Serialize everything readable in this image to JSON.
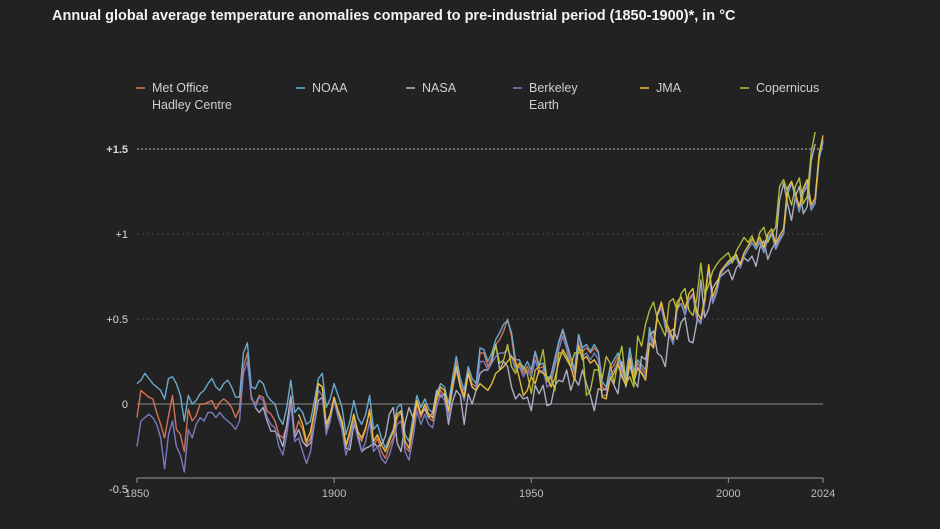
{
  "chart_data": {
    "type": "line",
    "title": "Annual global average temperature anomalies compared to pre-industrial period (1850-1900)*, in °C",
    "xlabel": "",
    "ylabel": "",
    "xlim": [
      1850,
      2024
    ],
    "ylim": [
      -0.5,
      1.6
    ],
    "x_ticks": [
      "1850",
      "1900",
      "1950",
      "2000",
      "2024"
    ],
    "y_ticks": [
      {
        "value": 1.5,
        "label": "+1.5"
      },
      {
        "value": 1,
        "label": "+1"
      },
      {
        "value": 0.5,
        "label": "+0.5"
      },
      {
        "value": 0,
        "label": "0"
      },
      {
        "value": -0.5,
        "label": "-0.5"
      }
    ],
    "reference_line": 1.5,
    "grid": true,
    "legend_position": "top",
    "series": [
      {
        "name": "Met Office Hadley Centre",
        "legend_lines": [
          "Met Office",
          "Hadley Centre"
        ],
        "color": "#d9775a",
        "x_start": 1850,
        "values": [
          -0.08,
          0.08,
          0.06,
          0.04,
          0.03,
          -0.05,
          -0.12,
          -0.2,
          -0.07,
          0.05,
          -0.15,
          -0.18,
          -0.28,
          -0.03,
          -0.1,
          -0.07,
          0.0,
          0.0,
          0.01,
          0.02,
          -0.03,
          0.01,
          0.03,
          0.01,
          -0.02,
          -0.08,
          -0.03,
          0.22,
          0.3,
          0.03,
          0.0,
          0.05,
          0.04,
          -0.04,
          -0.06,
          -0.1,
          -0.18,
          -0.2,
          -0.13,
          0.05,
          -0.18,
          -0.1,
          -0.15,
          -0.24,
          -0.2,
          -0.05,
          0.12,
          0.1,
          -0.12,
          -0.07,
          0.04,
          -0.05,
          -0.1,
          -0.25,
          -0.18,
          -0.08,
          -0.18,
          -0.22,
          -0.15,
          -0.03,
          -0.25,
          -0.2,
          -0.28,
          -0.32,
          -0.25,
          -0.2,
          -0.08,
          -0.05,
          -0.25,
          -0.28,
          -0.15,
          0.0,
          -0.08,
          -0.02,
          -0.08,
          -0.1,
          0.02,
          0.08,
          0.05,
          -0.05,
          0.12,
          0.25,
          0.12,
          0.05,
          0.2,
          0.12,
          0.1,
          0.3,
          0.3,
          0.22,
          0.27,
          0.35,
          0.38,
          0.43,
          0.5,
          0.4,
          0.22,
          0.24,
          0.18,
          0.22,
          0.18,
          0.3,
          0.21,
          0.22,
          0.13,
          0.15,
          0.25,
          0.36,
          0.43,
          0.35,
          0.26,
          0.18,
          0.4,
          0.31,
          0.33,
          0.3,
          0.33,
          0.3,
          0.1,
          0.08,
          0.2,
          0.23,
          0.28,
          0.2,
          0.15,
          0.3,
          0.17,
          0.24,
          0.21,
          0.18,
          0.42,
          0.35,
          0.53,
          0.58,
          0.47,
          0.42,
          0.36,
          0.57,
          0.59,
          0.53,
          0.62,
          0.65,
          0.51,
          0.48,
          0.6,
          0.81,
          0.6,
          0.66,
          0.77,
          0.8,
          0.83,
          0.85,
          0.87,
          0.8,
          0.87,
          0.91,
          0.95,
          0.92,
          0.96,
          0.9,
          0.98,
          1.01,
          0.92,
          0.97,
          1.01,
          1.25,
          1.3,
          1.22,
          1.14,
          1.25,
          1.3,
          1.15,
          1.19,
          1.45,
          1.55
        ]
      },
      {
        "name": "NOAA",
        "color": "#6fb1d6",
        "x_start": 1850,
        "values": [
          0.12,
          0.14,
          0.18,
          0.15,
          0.12,
          0.1,
          0.08,
          0.03,
          0.15,
          0.16,
          0.12,
          0.05,
          -0.1,
          0.05,
          0.0,
          0.02,
          0.06,
          0.08,
          0.12,
          0.15,
          0.1,
          0.08,
          0.12,
          0.14,
          0.1,
          0.04,
          0.04,
          0.3,
          0.36,
          0.1,
          0.09,
          0.14,
          0.12,
          0.05,
          0.02,
          0.0,
          -0.08,
          -0.12,
          -0.02,
          0.14,
          -0.05,
          -0.02,
          -0.05,
          -0.12,
          -0.1,
          0.02,
          0.15,
          0.18,
          -0.02,
          0.03,
          0.12,
          0.05,
          -0.02,
          -0.18,
          -0.1,
          0.02,
          -0.08,
          -0.12,
          -0.06,
          0.05,
          -0.15,
          -0.12,
          -0.2,
          -0.26,
          -0.2,
          -0.15,
          -0.02,
          0.0,
          -0.18,
          -0.22,
          -0.08,
          0.05,
          -0.02,
          0.03,
          -0.03,
          -0.05,
          0.06,
          0.12,
          0.1,
          0.0,
          0.15,
          0.28,
          0.15,
          0.08,
          0.22,
          0.15,
          0.12,
          0.33,
          0.32,
          0.25,
          0.3,
          0.38,
          0.42,
          0.47,
          0.49,
          0.42,
          0.26,
          0.26,
          0.2,
          0.25,
          0.2,
          0.31,
          0.23,
          0.24,
          0.15,
          0.17,
          0.27,
          0.37,
          0.44,
          0.36,
          0.28,
          0.2,
          0.41,
          0.33,
          0.35,
          0.31,
          0.35,
          0.31,
          0.13,
          0.1,
          0.22,
          0.26,
          0.3,
          0.22,
          0.17,
          0.33,
          0.19,
          0.26,
          0.23,
          0.2,
          0.45,
          0.36,
          0.52,
          0.57,
          0.45,
          0.41,
          0.36,
          0.56,
          0.59,
          0.53,
          0.61,
          0.64,
          0.5,
          0.48,
          0.6,
          0.8,
          0.6,
          0.66,
          0.76,
          0.8,
          0.82,
          0.84,
          0.86,
          0.8,
          0.87,
          0.91,
          0.95,
          0.91,
          0.95,
          0.89,
          0.97,
          1.0,
          0.91,
          0.96,
          1.0,
          1.23,
          1.3,
          1.21,
          1.13,
          1.24,
          1.28,
          1.14,
          1.18,
          1.44,
          1.54
        ]
      },
      {
        "name": "NASA",
        "color": "#b3b6c9",
        "x_start": 1880,
        "values": [
          -0.02,
          -0.05,
          -0.02,
          -0.1,
          -0.16,
          -0.16,
          -0.19,
          -0.25,
          -0.12,
          0.04,
          -0.2,
          -0.15,
          -0.22,
          -0.25,
          -0.23,
          -0.12,
          0.02,
          0.04,
          -0.15,
          -0.08,
          0.02,
          -0.05,
          -0.12,
          -0.26,
          -0.27,
          -0.12,
          -0.18,
          -0.28,
          -0.26,
          -0.25,
          -0.23,
          -0.25,
          -0.24,
          -0.19,
          -0.06,
          -0.02,
          -0.23,
          -0.28,
          -0.11,
          -0.02,
          -0.08,
          0.02,
          -0.06,
          -0.03,
          -0.08,
          -0.05,
          0.08,
          0.04,
          0.06,
          -0.12,
          0.01,
          0.08,
          0.05,
          -0.12,
          0.06,
          0.0,
          0.08,
          0.18,
          0.2,
          0.2,
          0.25,
          0.35,
          0.2,
          0.25,
          0.22,
          0.1,
          0.03,
          0.06,
          0.03,
          0.04,
          -0.04,
          0.11,
          0.06,
          0.11,
          -0.01,
          0.0,
          0.11,
          0.14,
          0.13,
          0.2,
          0.08,
          0.15,
          0.11,
          0.2,
          0.12,
          0.05,
          -0.04,
          0.09,
          0.08,
          0.09,
          0.16,
          0.11,
          0.06,
          0.25,
          0.1,
          0.23,
          0.14,
          0.1,
          0.28,
          0.26,
          0.4,
          0.43,
          0.3,
          0.28,
          0.22,
          0.42,
          0.44,
          0.38,
          0.48,
          0.51,
          0.37,
          0.36,
          0.48,
          0.73,
          0.51,
          0.56,
          0.68,
          0.72,
          0.75,
          0.77,
          0.79,
          0.73,
          0.8,
          0.83,
          0.86,
          0.84,
          0.87,
          0.81,
          0.92,
          0.96,
          0.85,
          0.91,
          0.95,
          1.2,
          1.3,
          1.18,
          1.08,
          1.22,
          1.28,
          1.12,
          1.16,
          1.43,
          1.53
        ]
      },
      {
        "name": "Berkeley Earth",
        "legend_lines": [
          "Berkeley",
          "Earth"
        ],
        "color": "#7d80c9",
        "x_start": 1850,
        "values": [
          -0.25,
          -0.1,
          -0.08,
          -0.06,
          -0.08,
          -0.12,
          -0.2,
          -0.38,
          -0.18,
          -0.1,
          -0.25,
          -0.3,
          -0.4,
          -0.15,
          -0.2,
          -0.12,
          -0.08,
          -0.1,
          -0.05,
          -0.05,
          -0.08,
          -0.05,
          -0.08,
          -0.1,
          -0.12,
          -0.15,
          -0.1,
          0.18,
          0.25,
          0.05,
          -0.02,
          0.04,
          0.02,
          -0.08,
          -0.12,
          -0.14,
          -0.25,
          -0.3,
          -0.18,
          0.0,
          -0.22,
          -0.2,
          -0.28,
          -0.35,
          -0.28,
          -0.12,
          0.08,
          0.05,
          -0.18,
          -0.1,
          0.02,
          -0.08,
          -0.15,
          -0.3,
          -0.22,
          -0.1,
          -0.2,
          -0.28,
          -0.22,
          -0.1,
          -0.28,
          -0.25,
          -0.32,
          -0.35,
          -0.3,
          -0.22,
          -0.12,
          -0.1,
          -0.28,
          -0.33,
          -0.2,
          -0.04,
          -0.12,
          -0.06,
          -0.12,
          -0.14,
          -0.02,
          0.06,
          0.02,
          -0.08,
          0.08,
          0.2,
          0.1,
          0.02,
          0.18,
          0.1,
          0.08,
          0.25,
          0.25,
          0.2,
          0.24,
          0.28,
          0.3,
          0.3,
          0.32,
          0.28,
          0.2,
          0.22,
          0.16,
          0.2,
          0.16,
          0.26,
          0.18,
          0.2,
          0.1,
          0.12,
          0.22,
          0.32,
          0.4,
          0.32,
          0.22,
          0.14,
          0.36,
          0.28,
          0.3,
          0.26,
          0.3,
          0.26,
          0.05,
          0.05,
          0.17,
          0.2,
          0.25,
          0.18,
          0.12,
          0.28,
          0.15,
          0.22,
          0.19,
          0.16,
          0.4,
          0.33,
          0.52,
          0.57,
          0.46,
          0.41,
          0.35,
          0.56,
          0.59,
          0.52,
          0.61,
          0.64,
          0.5,
          0.47,
          0.59,
          0.81,
          0.59,
          0.65,
          0.76,
          0.8,
          0.83,
          0.85,
          0.87,
          0.8,
          0.87,
          0.91,
          0.95,
          0.92,
          0.96,
          0.9,
          0.98,
          1.01,
          0.92,
          0.97,
          1.01,
          1.25,
          1.31,
          1.21,
          1.14,
          1.25,
          1.3,
          1.15,
          1.19,
          1.46,
          1.56
        ]
      },
      {
        "name": "JMA",
        "color": "#f0c33c",
        "x_start": 1891,
        "values": [
          -0.06,
          -0.12,
          -0.22,
          -0.16,
          -0.04,
          0.12,
          0.1,
          -0.12,
          -0.06,
          0.04,
          -0.04,
          -0.1,
          -0.24,
          -0.16,
          -0.06,
          -0.16,
          -0.2,
          -0.14,
          -0.04,
          -0.22,
          -0.18,
          -0.24,
          -0.28,
          -0.22,
          -0.16,
          -0.06,
          -0.04,
          -0.22,
          -0.26,
          -0.12,
          0.02,
          -0.06,
          0.0,
          -0.06,
          -0.08,
          0.04,
          0.1,
          0.08,
          -0.04,
          0.1,
          0.22,
          0.1,
          0.04,
          0.18,
          0.1,
          0.08,
          0.12,
          0.1,
          0.08,
          0.12,
          0.18,
          0.2,
          0.22,
          0.25,
          0.28,
          0.25,
          0.15,
          0.05,
          0.08,
          0.16,
          0.12,
          0.2,
          0.18,
          0.16,
          0.1,
          0.15,
          0.25,
          0.32,
          0.28,
          0.22,
          0.14,
          0.34,
          0.26,
          0.28,
          0.24,
          0.26,
          0.22,
          0.04,
          0.03,
          0.15,
          0.18,
          0.23,
          0.16,
          0.11,
          0.27,
          0.13,
          0.21,
          0.18,
          0.14,
          0.36,
          0.33,
          0.53,
          0.6,
          0.49,
          0.44,
          0.38,
          0.6,
          0.63,
          0.56,
          0.65,
          0.68,
          0.54,
          0.5,
          0.62,
          0.82,
          0.63,
          0.69,
          0.78,
          0.81,
          0.84,
          0.86,
          0.88,
          0.82,
          0.89,
          0.93,
          0.97,
          0.94,
          0.98,
          0.92,
          1.0,
          1.03,
          0.94,
          0.99,
          1.03,
          1.27,
          1.31,
          1.24,
          1.16,
          1.27,
          1.32,
          1.17,
          1.21,
          1.47,
          1.58
        ]
      },
      {
        "name": "Copernicus",
        "color": "#b8c23a",
        "x_start": 1940,
        "values": [
          0.28,
          0.34,
          0.24,
          0.26,
          0.35,
          0.22,
          0.18,
          0.24,
          0.22,
          0.18,
          0.06,
          0.2,
          0.22,
          0.32,
          0.14,
          0.16,
          0.08,
          0.3,
          0.3,
          0.26,
          0.22,
          0.3,
          0.3,
          0.32,
          0.05,
          0.08,
          0.2,
          0.2,
          0.15,
          0.28,
          0.24,
          0.12,
          0.25,
          0.34,
          0.12,
          0.16,
          0.1,
          0.4,
          0.34,
          0.47,
          0.55,
          0.6,
          0.5,
          0.45,
          0.4,
          0.6,
          0.62,
          0.55,
          0.65,
          0.68,
          0.55,
          0.52,
          0.62,
          0.83,
          0.64,
          0.7,
          0.78,
          0.82,
          0.85,
          0.87,
          0.89,
          0.83,
          0.9,
          0.94,
          0.98,
          0.95,
          0.99,
          0.93,
          1.01,
          1.04,
          0.95,
          1.0,
          1.04,
          1.28,
          1.32,
          1.25,
          1.17,
          1.28,
          1.33,
          1.18,
          1.22,
          1.48,
          1.6
        ]
      }
    ]
  }
}
